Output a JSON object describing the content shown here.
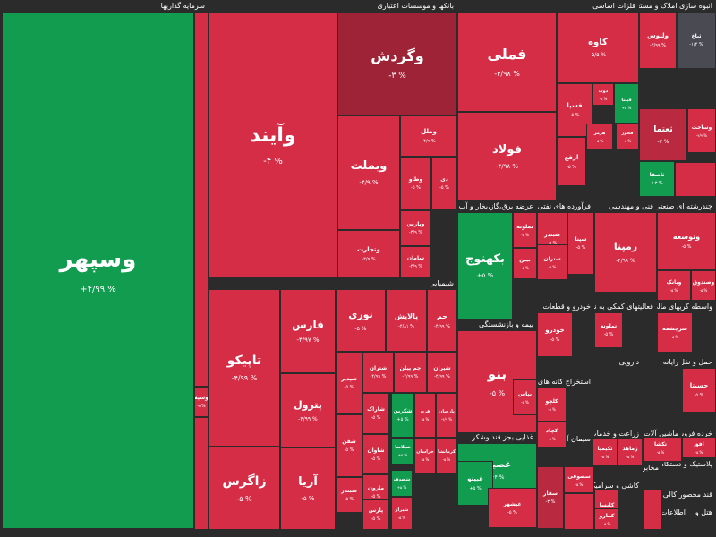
{
  "colors": {
    "background": "#2b2b2b",
    "green": "#119c4f",
    "red": "#d62d47",
    "dark_red": "#9e2336",
    "mid_red": "#b92a40",
    "gray": "#4a4a52"
  },
  "sectors": [
    {
      "id": "s1",
      "title": "سرمایه گذاریها"
    },
    {
      "id": "s2",
      "title": "بانکها و موسسات اعتباری"
    },
    {
      "id": "s3",
      "title": "فلزات اساسی"
    },
    {
      "id": "s4",
      "title": "انبوه سازی املاک و مستغلات"
    },
    {
      "id": "s5",
      "title": "شیمیایی"
    },
    {
      "id": "s6",
      "title": "عرضه برق،گاز،بخار و آب گرم"
    },
    {
      "id": "s7",
      "title": "فرآورده های نفتی"
    },
    {
      "id": "s8",
      "title": "فنی و مهندسی"
    },
    {
      "id": "s9",
      "title": "چندرشته ای صنعتی"
    },
    {
      "id": "s10",
      "title": "خودرو و قطعات"
    },
    {
      "id": "s11",
      "title": "فعالیتهای کمکی به نهاد های مالی"
    },
    {
      "id": "s12",
      "title": "واسطه گریهای مالی و"
    },
    {
      "id": "s13",
      "title": "بیمه و بازنشستگی"
    },
    {
      "id": "s14",
      "title": "دارویی"
    },
    {
      "id": "s15",
      "title": "رایانه"
    },
    {
      "id": "s16",
      "title": "حمل و نقل"
    },
    {
      "id": "s17",
      "title": "استخراج کانه های فلزی"
    },
    {
      "id": "s18",
      "title": "زراعت و خدمات"
    },
    {
      "id": "s19",
      "title": "خرده فروشی"
    },
    {
      "id": "s20",
      "title": "ماشین آلات و"
    },
    {
      "id": "s21",
      "title": "غذایی بجز قند وشکر"
    },
    {
      "id": "s22",
      "title": "سیمان آهک گچ"
    },
    {
      "id": "s23",
      "title": "پلاستیک و دستگاهها"
    },
    {
      "id": "s24",
      "title": "مخابرات"
    },
    {
      "id": "s25",
      "title": "کاشی و سرامیک"
    },
    {
      "id": "s26",
      "title": "قند محصور کالی غیر"
    },
    {
      "id": "s27",
      "title": "اطلاعات و"
    },
    {
      "id": "s28",
      "title": "هتل و"
    }
  ],
  "tiles": [
    {
      "name": "وسپهر",
      "pct": "+۴/۹۹ %",
      "color": "green"
    },
    {
      "name": "وسپه",
      "pct": "-۵%",
      "color": "red"
    },
    {
      "name": "وآیند",
      "pct": "-۴ %",
      "color": "red"
    },
    {
      "name": "وگردش",
      "pct": "-۳ %",
      "color": "dark_red"
    },
    {
      "name": "وبملت",
      "pct": "-۴/۹ %",
      "color": "red"
    },
    {
      "name": "وملل",
      "pct": "-۴/۹ %",
      "color": "red"
    },
    {
      "name": "وطاو",
      "pct": "-۵ %",
      "color": "red"
    },
    {
      "name": "دی",
      "pct": "-۵ %",
      "color": "red"
    },
    {
      "name": "وتجارت",
      "pct": "-۴/۹ %",
      "color": "red"
    },
    {
      "name": "وپارس",
      "pct": "-۴/۹ %",
      "color": "red"
    },
    {
      "name": "سامان",
      "pct": "-۴/۹ %",
      "color": "red"
    },
    {
      "name": "فملی",
      "pct": "-۴/۹۸ %",
      "color": "red"
    },
    {
      "name": "فولاد",
      "pct": "-۴/۹۸ %",
      "color": "red"
    },
    {
      "name": "کاوه",
      "pct": "-۵/۵ %",
      "color": "red"
    },
    {
      "name": "فسپا",
      "pct": "-۵ %",
      "color": "red"
    },
    {
      "name": "ذوب",
      "pct": "-۵ %",
      "color": "red"
    },
    {
      "name": "فپنتا",
      "pct": "+۵ %",
      "color": "green"
    },
    {
      "name": "هرمز",
      "pct": "-۵ %",
      "color": "red"
    },
    {
      "name": "فخوز",
      "pct": "-۵ %",
      "color": "red"
    },
    {
      "name": "ارفع",
      "pct": "-۵ %",
      "color": "red"
    },
    {
      "name": "ولتوس",
      "pct": "-۴/۹۹ %",
      "color": "red"
    },
    {
      "name": "ثباغ",
      "pct": "-۱/۴ %",
      "color": "gray"
    },
    {
      "name": "ثعتما",
      "pct": "-۳ %",
      "color": "mid_red"
    },
    {
      "name": "وساخت",
      "pct": "-۴/۹ %",
      "color": "red"
    },
    {
      "name": "ثاصفا",
      "pct": "+۳ %",
      "color": "green"
    },
    {
      "name": "تاپیکو",
      "pct": "-۴/۹۹ %",
      "color": "red"
    },
    {
      "name": "فارس",
      "pct": "-۴/۹۷ %",
      "color": "red"
    },
    {
      "name": "نوری",
      "pct": "-۵ %",
      "color": "red"
    },
    {
      "name": "پالایش",
      "pct": "-۴/۸۱ %",
      "color": "red"
    },
    {
      "name": "جم",
      "pct": "-۴/۹۹ %",
      "color": "red"
    },
    {
      "name": "پترول",
      "pct": "-۴/۹۹ %",
      "color": "red"
    },
    {
      "name": "شپدیر",
      "pct": "-۵ %",
      "color": "red"
    },
    {
      "name": "شتران",
      "pct": "-۴/۹۹ %",
      "color": "red"
    },
    {
      "name": "جم پیلن",
      "pct": "-۴/۹۹ %",
      "color": "red"
    },
    {
      "name": "شیران",
      "pct": "-۴/۹۹ %",
      "color": "red"
    },
    {
      "name": "زاگرس",
      "pct": "-۵ %",
      "color": "red"
    },
    {
      "name": "آریا",
      "pct": "-۵ %",
      "color": "red"
    },
    {
      "name": "شفن",
      "pct": "-۵ %",
      "color": "red"
    },
    {
      "name": "شاراک",
      "pct": "-۵ %",
      "color": "red"
    },
    {
      "name": "شکربن",
      "pct": "+۵ %",
      "color": "green"
    },
    {
      "name": "قرن",
      "pct": "-۵ %",
      "color": "red"
    },
    {
      "name": "پارسان",
      "pct": "-۴/۹ %",
      "color": "red"
    },
    {
      "name": "شاوان",
      "pct": "-۵ %",
      "color": "red"
    },
    {
      "name": "خراسان",
      "pct": "-۵ %",
      "color": "red"
    },
    {
      "name": "شپلاسا",
      "pct": "+۵ %",
      "color": "green"
    },
    {
      "name": "کرمانشا",
      "pct": "-۵ %",
      "color": "red"
    },
    {
      "name": "مارون",
      "pct": "-۵ %",
      "color": "red"
    },
    {
      "name": "شصدف",
      "pct": "+۵ %",
      "color": "green"
    },
    {
      "name": "شبندر",
      "pct": "-۵ %",
      "color": "red"
    },
    {
      "name": "پارس",
      "pct": "-۵ %",
      "color": "red"
    },
    {
      "name": "شیراز",
      "pct": "-۵ %",
      "color": "red"
    },
    {
      "name": "بکهنوج",
      "pct": "+۵ %",
      "color": "green"
    },
    {
      "name": "تملونه",
      "pct": "-۵ %",
      "color": "red"
    },
    {
      "name": "بیبن",
      "pct": "-۵ %",
      "color": "red"
    },
    {
      "name": "شبندر",
      "pct": "-۵ %",
      "color": "red"
    },
    {
      "name": "شپنا",
      "pct": "-۵ %",
      "color": "red"
    },
    {
      "name": "شتران",
      "pct": "-۵ %",
      "color": "red"
    },
    {
      "name": "رمپنا",
      "pct": "-۴/۹۸ %",
      "color": "red"
    },
    {
      "name": "وتوسعه",
      "pct": "-۵ %",
      "color": "red"
    },
    {
      "name": "وبانک",
      "pct": "-۵ %",
      "color": "red"
    },
    {
      "name": "وصندوق",
      "pct": "-۵ %",
      "color": "red"
    },
    {
      "name": "بنو",
      "pct": "-۵ %",
      "color": "red"
    },
    {
      "name": "بپاس",
      "pct": "-۵ %",
      "color": "red"
    },
    {
      "name": "خودرو",
      "pct": "-۵ %",
      "color": "red"
    },
    {
      "name": "تملونه",
      "pct": "-۵ %",
      "color": "red"
    },
    {
      "name": "سرچشمه",
      "pct": "-۵ %",
      "color": "red"
    },
    {
      "name": "کلچو",
      "pct": "-۵ %",
      "color": "red"
    },
    {
      "name": "کچاد",
      "pct": "-۵ %",
      "color": "red"
    },
    {
      "name": "حسیتا",
      "pct": "-۵ %",
      "color": "red"
    },
    {
      "name": "غصینو",
      "pct": "+۴ %",
      "color": "green"
    },
    {
      "name": "غبینو",
      "pct": "+۵ %",
      "color": "green"
    },
    {
      "name": "غیشهر",
      "pct": "-۵ %",
      "color": "red"
    },
    {
      "name": "سفار",
      "pct": "-۳ %",
      "color": "mid_red"
    },
    {
      "name": "کلیسا",
      "pct": "-۵ %",
      "color": "red"
    },
    {
      "name": "کمارو",
      "pct": "-۵ %",
      "color": "red"
    },
    {
      "name": "زماهد",
      "pct": "-۵ %",
      "color": "red"
    },
    {
      "name": "ککاشی",
      "pct": "-۵ %",
      "color": "red"
    },
    {
      "name": "افق",
      "pct": "-۵ %",
      "color": "red"
    },
    {
      "name": "تکیمیا",
      "pct": "-۵ %",
      "color": "red"
    },
    {
      "name": "تکشا",
      "pct": "-۵ %",
      "color": "red"
    },
    {
      "name": "سصوفی",
      "pct": "-۵ %",
      "color": "red"
    }
  ]
}
